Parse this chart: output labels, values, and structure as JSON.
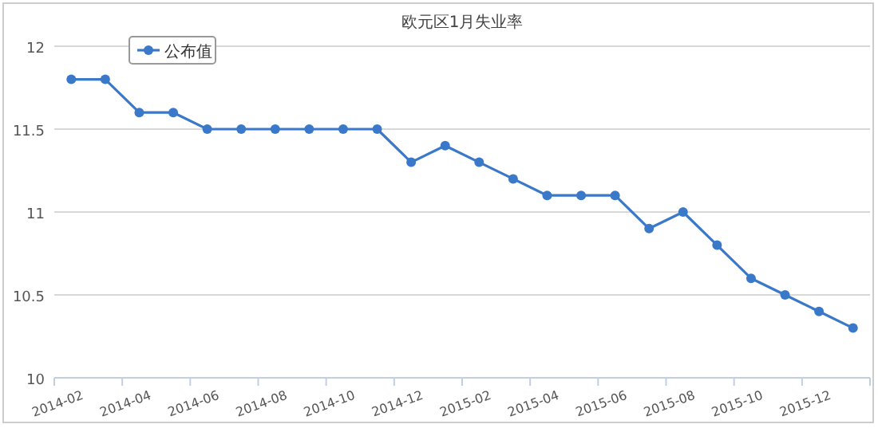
{
  "chart_data": {
    "type": "line",
    "title": "欧元区1月失业率",
    "categories": [
      "2014-02",
      null,
      "2014-04",
      null,
      "2014-06",
      null,
      "2014-08",
      null,
      "2014-10",
      null,
      "2014-12",
      null,
      "2015-02",
      null,
      "2015-04",
      null,
      "2015-06",
      null,
      "2015-08",
      null,
      "2015-10",
      null,
      "2015-12",
      null
    ],
    "series": [
      {
        "name": "公布值",
        "color": "#3a78c9",
        "values": [
          11.8,
          11.8,
          11.6,
          11.6,
          11.5,
          11.5,
          11.5,
          11.5,
          11.5,
          11.5,
          11.3,
          11.4,
          11.3,
          11.2,
          11.1,
          11.1,
          11.1,
          10.9,
          11.0,
          10.8,
          10.6,
          10.5,
          10.4,
          10.3
        ]
      }
    ],
    "ylim": [
      10,
      12
    ],
    "yticks": [
      10,
      10.5,
      11,
      11.5,
      12
    ],
    "grid": "y",
    "legend": "top left",
    "marker": "circle",
    "line_style": "solid"
  }
}
